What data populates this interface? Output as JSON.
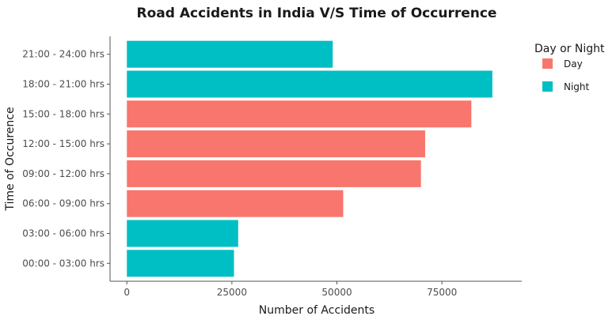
{
  "chart_data": {
    "type": "bar",
    "orientation": "horizontal",
    "title": "Road Accidents in India V/S Time of Occurrence",
    "xlabel": "Number of Accidents",
    "ylabel": "Time of Occurence",
    "xlim": [
      -4000,
      94000
    ],
    "x_ticks": [
      0,
      25000,
      50000,
      75000
    ],
    "x_tick_labels": [
      "0",
      "25000",
      "50000",
      "75000"
    ],
    "grid": false,
    "legend": {
      "title": "Day or Night",
      "placement": "right",
      "entries": [
        {
          "name": "Day",
          "color": "#F8766D"
        },
        {
          "name": "Night",
          "color": "#00BFC4"
        }
      ]
    },
    "categories": [
      "00:00 - 03:00 hrs",
      "03:00 - 06:00 hrs",
      "06:00 - 09:00 hrs",
      "09:00 - 12:00 hrs",
      "12:00 - 15:00 hrs",
      "15:00 - 18:00 hrs",
      "18:00 - 21:00 hrs",
      "21:00 - 24:00 hrs"
    ],
    "values": [
      25500,
      26500,
      51500,
      70000,
      71000,
      82000,
      87000,
      49000
    ],
    "groups": [
      "Night",
      "Night",
      "Day",
      "Day",
      "Day",
      "Day",
      "Night",
      "Night"
    ]
  }
}
